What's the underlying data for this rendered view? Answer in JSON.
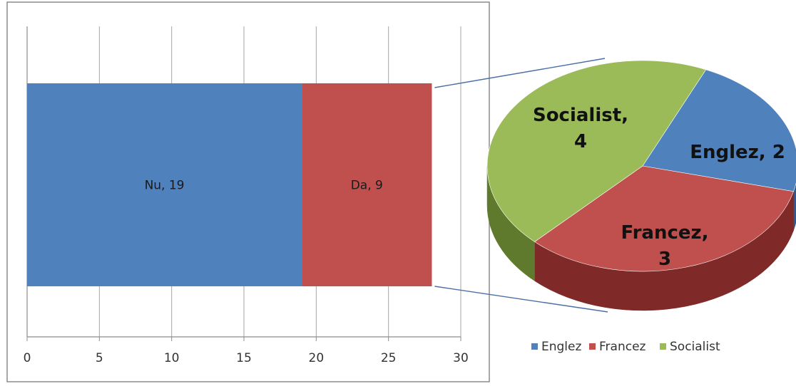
{
  "chart_data": [
    {
      "type": "bar",
      "orientation": "horizontal",
      "stacked": true,
      "xlim": [
        0,
        30
      ],
      "xticks": [
        0,
        5,
        10,
        15,
        20,
        25,
        30
      ],
      "grid": true,
      "legend": "none",
      "series": [
        {
          "name": "Nu",
          "value": 19,
          "label": "Nu, 19",
          "color": "#4f81bd"
        },
        {
          "name": "Da",
          "value": 9,
          "label": "Da, 9",
          "color": "#c0504d"
        }
      ]
    },
    {
      "type": "pie",
      "style": "3d",
      "legend": "bottom",
      "slices": [
        {
          "name": "Englez",
          "value": 2,
          "label_lines": [
            "Englez, 2"
          ],
          "color": "#4f81bd",
          "side": "#2e5a8f"
        },
        {
          "name": "Francez",
          "value": 3,
          "label_lines": [
            "Francez,",
            "3"
          ],
          "color": "#c0504d",
          "side": "#7f2a28"
        },
        {
          "name": "Socialist",
          "value": 4,
          "label_lines": [
            "Socialist,",
            "4"
          ],
          "color": "#9bbb59",
          "side": "#5f7a2c"
        }
      ],
      "legend_items": [
        "Englez",
        "Francez",
        "Socialist"
      ]
    }
  ]
}
